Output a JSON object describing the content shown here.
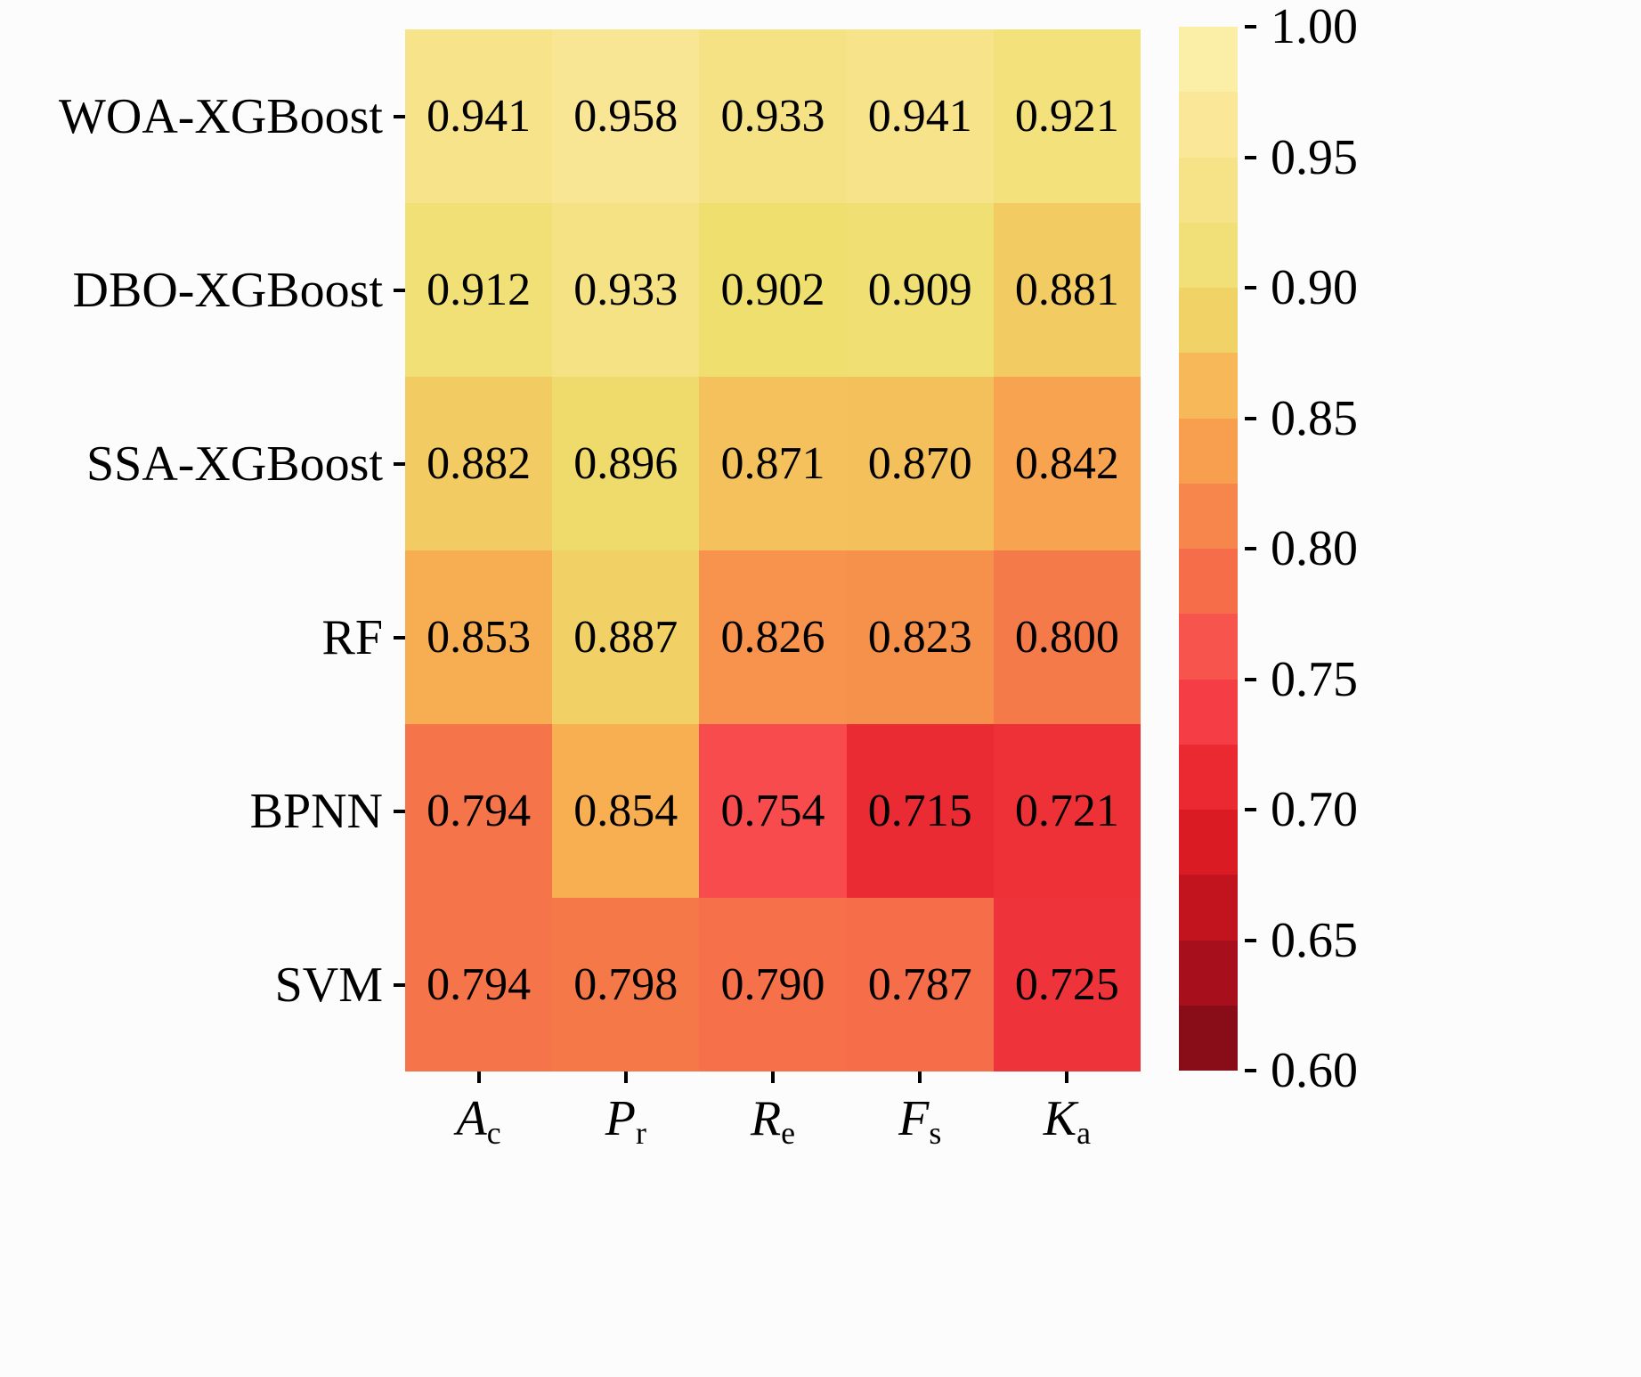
{
  "background": "#fcfcfc",
  "text_color": "#000000",
  "chart_data": {
    "type": "heatmap",
    "rows": [
      "WOA-XGBoost",
      "DBO-XGBoost",
      "SSA-XGBoost",
      "RF",
      "BPNN",
      "SVM"
    ],
    "columns": [
      {
        "main": "A",
        "sub": "c"
      },
      {
        "main": "P",
        "sub": "r"
      },
      {
        "main": "R",
        "sub": "e"
      },
      {
        "main": "F",
        "sub": "s"
      },
      {
        "main": "K",
        "sub": "a"
      }
    ],
    "values": [
      [
        0.941,
        0.958,
        0.933,
        0.941,
        0.921
      ],
      [
        0.912,
        0.933,
        0.902,
        0.909,
        0.881
      ],
      [
        0.882,
        0.896,
        0.871,
        0.87,
        0.842
      ],
      [
        0.853,
        0.887,
        0.826,
        0.823,
        0.8
      ],
      [
        0.794,
        0.854,
        0.754,
        0.715,
        0.721
      ],
      [
        0.794,
        0.798,
        0.79,
        0.787,
        0.725
      ]
    ],
    "value_format_decimals": 3,
    "vmin": 0.6,
    "vmax": 1.0,
    "colorbar_ticks": [
      {
        "label": "1.00",
        "value": 1.0
      },
      {
        "label": "0.95",
        "value": 0.95
      },
      {
        "label": "0.90",
        "value": 0.9
      },
      {
        "label": "0.85",
        "value": 0.85
      },
      {
        "label": "0.80",
        "value": 0.8
      },
      {
        "label": "0.75",
        "value": 0.75
      },
      {
        "label": "0.70",
        "value": 0.7
      },
      {
        "label": "0.65",
        "value": 0.65
      },
      {
        "label": "0.60",
        "value": 0.6
      }
    ],
    "colorbar_bands": 16,
    "legend_position": "right",
    "grid": false,
    "colormap": {
      "name": "yellow-orange-red-reversed",
      "stops_low_to_high": [
        "#7a0a18",
        "#b5101c",
        "#e61f27",
        "#f8474e",
        "#f57a49",
        "#f8ab50",
        "#eedf6e",
        "#f9e490",
        "#fbf2b0"
      ]
    }
  }
}
